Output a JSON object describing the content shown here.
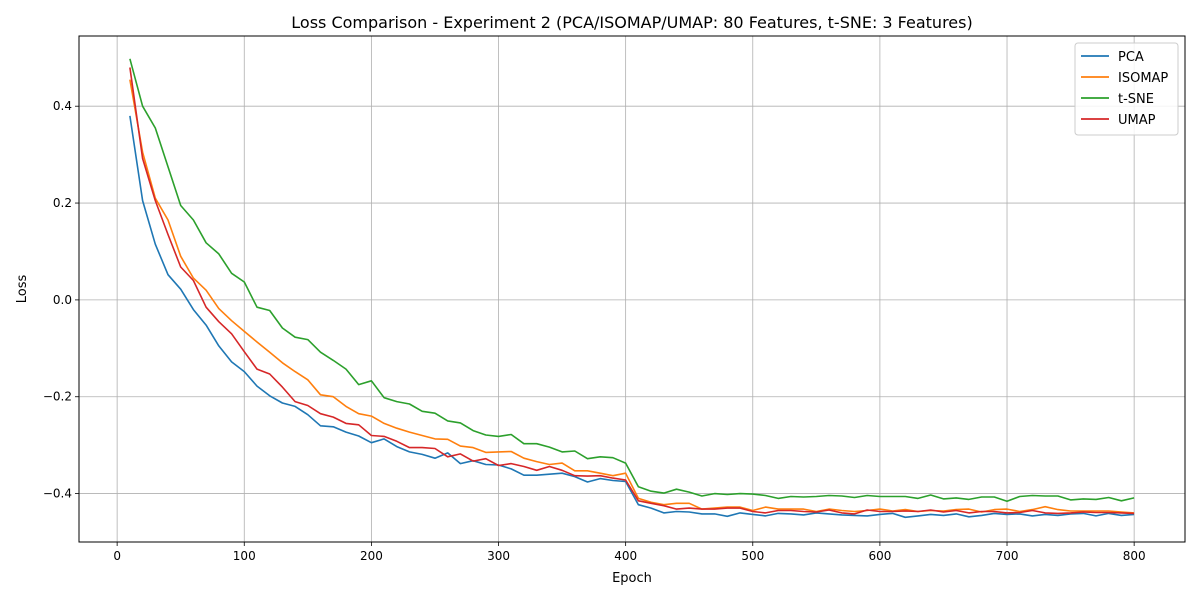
{
  "chart_data": {
    "type": "line",
    "title": "Loss Comparison - Experiment 2 (PCA/ISOMAP/UMAP: 80 Features, t-SNE: 3 Features)",
    "xlabel": "Epoch",
    "ylabel": "Loss",
    "xlim": [
      -30,
      840
    ],
    "ylim": [
      -0.5,
      0.545
    ],
    "xticks": [
      0,
      100,
      200,
      300,
      400,
      500,
      600,
      700,
      800
    ],
    "yticks": [
      -0.4,
      -0.2,
      0.0,
      0.2,
      0.4
    ],
    "xtick_labels": [
      "0",
      "100",
      "200",
      "300",
      "400",
      "500",
      "600",
      "700",
      "800"
    ],
    "ytick_labels": [
      "−0.4",
      "−0.2",
      "0.0",
      "0.2",
      "0.4"
    ],
    "grid": true,
    "legend_position": "top-right",
    "x": [
      10,
      20,
      30,
      40,
      50,
      60,
      70,
      80,
      90,
      100,
      110,
      120,
      130,
      140,
      150,
      160,
      170,
      180,
      190,
      200,
      210,
      220,
      230,
      240,
      250,
      260,
      270,
      280,
      290,
      300,
      310,
      320,
      330,
      340,
      350,
      360,
      370,
      380,
      390,
      400,
      410,
      420,
      430,
      440,
      450,
      460,
      470,
      480,
      490,
      500,
      510,
      520,
      530,
      540,
      550,
      560,
      570,
      580,
      590,
      600,
      610,
      620,
      630,
      640,
      650,
      660,
      670,
      680,
      690,
      700,
      710,
      720,
      730,
      740,
      750,
      760,
      770,
      780,
      790,
      800
    ],
    "series": [
      {
        "name": "PCA",
        "color": "#1f77b4",
        "values": [
          0.38,
          0.205,
          0.115,
          0.052,
          0.022,
          -0.02,
          -0.052,
          -0.095,
          -0.128,
          -0.148,
          -0.178,
          -0.198,
          -0.213,
          -0.22,
          -0.237,
          -0.26,
          -0.262,
          -0.273,
          -0.281,
          -0.295,
          -0.287,
          -0.303,
          -0.314,
          -0.319,
          -0.327,
          -0.316,
          -0.338,
          -0.332,
          -0.34,
          -0.341,
          -0.349,
          -0.362,
          -0.362,
          -0.36,
          -0.358,
          -0.365,
          -0.376,
          -0.369,
          -0.373,
          -0.375,
          -0.423,
          -0.43,
          -0.44,
          -0.437,
          -0.438,
          -0.442,
          -0.442,
          -0.447,
          -0.44,
          -0.443,
          -0.446,
          -0.441,
          -0.442,
          -0.444,
          -0.44,
          -0.442,
          -0.444,
          -0.445,
          -0.446,
          -0.443,
          -0.441,
          -0.449,
          -0.446,
          -0.443,
          -0.445,
          -0.442,
          -0.448,
          -0.445,
          -0.441,
          -0.443,
          -0.442,
          -0.446,
          -0.443,
          -0.445,
          -0.442,
          -0.441,
          -0.446,
          -0.441,
          -0.445,
          -0.443
        ]
      },
      {
        "name": "ISOMAP",
        "color": "#ff7f0e",
        "values": [
          0.455,
          0.305,
          0.21,
          0.165,
          0.09,
          0.045,
          0.02,
          -0.018,
          -0.043,
          -0.065,
          -0.087,
          -0.108,
          -0.13,
          -0.148,
          -0.165,
          -0.196,
          -0.2,
          -0.22,
          -0.235,
          -0.24,
          -0.255,
          -0.265,
          -0.273,
          -0.28,
          -0.287,
          -0.288,
          -0.302,
          -0.305,
          -0.315,
          -0.314,
          -0.313,
          -0.327,
          -0.334,
          -0.34,
          -0.337,
          -0.353,
          -0.353,
          -0.358,
          -0.363,
          -0.358,
          -0.41,
          -0.418,
          -0.423,
          -0.42,
          -0.42,
          -0.432,
          -0.43,
          -0.428,
          -0.428,
          -0.435,
          -0.428,
          -0.432,
          -0.432,
          -0.432,
          -0.437,
          -0.432,
          -0.435,
          -0.437,
          -0.435,
          -0.432,
          -0.436,
          -0.433,
          -0.437,
          -0.435,
          -0.436,
          -0.433,
          -0.432,
          -0.438,
          -0.433,
          -0.432,
          -0.437,
          -0.433,
          -0.427,
          -0.433,
          -0.436,
          -0.436,
          -0.436,
          -0.436,
          -0.438,
          -0.44
        ]
      },
      {
        "name": "t-SNE",
        "color": "#2ca02c",
        "values": [
          0.498,
          0.4,
          0.355,
          0.275,
          0.195,
          0.165,
          0.118,
          0.095,
          0.055,
          0.037,
          -0.015,
          -0.022,
          -0.058,
          -0.077,
          -0.082,
          -0.108,
          -0.125,
          -0.143,
          -0.175,
          -0.167,
          -0.202,
          -0.21,
          -0.215,
          -0.23,
          -0.234,
          -0.25,
          -0.254,
          -0.27,
          -0.279,
          -0.282,
          -0.278,
          -0.297,
          -0.297,
          -0.304,
          -0.314,
          -0.312,
          -0.328,
          -0.324,
          -0.326,
          -0.337,
          -0.386,
          -0.395,
          -0.399,
          -0.391,
          -0.397,
          -0.405,
          -0.4,
          -0.402,
          -0.4,
          -0.401,
          -0.404,
          -0.41,
          -0.406,
          -0.407,
          -0.406,
          -0.404,
          -0.405,
          -0.408,
          -0.404,
          -0.406,
          -0.406,
          -0.406,
          -0.41,
          -0.403,
          -0.411,
          -0.409,
          -0.412,
          -0.407,
          -0.407,
          -0.416,
          -0.406,
          -0.404,
          -0.405,
          -0.405,
          -0.413,
          -0.411,
          -0.412,
          -0.408,
          -0.415,
          -0.409
        ]
      },
      {
        "name": "UMAP",
        "color": "#d62728",
        "values": [
          0.48,
          0.292,
          0.205,
          0.135,
          0.068,
          0.04,
          -0.015,
          -0.045,
          -0.07,
          -0.107,
          -0.143,
          -0.153,
          -0.18,
          -0.21,
          -0.218,
          -0.235,
          -0.242,
          -0.255,
          -0.258,
          -0.28,
          -0.282,
          -0.292,
          -0.305,
          -0.305,
          -0.307,
          -0.324,
          -0.318,
          -0.333,
          -0.328,
          -0.342,
          -0.338,
          -0.344,
          -0.352,
          -0.344,
          -0.352,
          -0.363,
          -0.364,
          -0.363,
          -0.368,
          -0.372,
          -0.415,
          -0.42,
          -0.425,
          -0.432,
          -0.43,
          -0.432,
          -0.432,
          -0.43,
          -0.43,
          -0.437,
          -0.44,
          -0.435,
          -0.435,
          -0.437,
          -0.438,
          -0.434,
          -0.44,
          -0.442,
          -0.434,
          -0.437,
          -0.437,
          -0.436,
          -0.437,
          -0.434,
          -0.438,
          -0.435,
          -0.44,
          -0.437,
          -0.437,
          -0.44,
          -0.439,
          -0.435,
          -0.44,
          -0.441,
          -0.44,
          -0.438,
          -0.439,
          -0.439,
          -0.44,
          -0.441
        ]
      }
    ]
  }
}
